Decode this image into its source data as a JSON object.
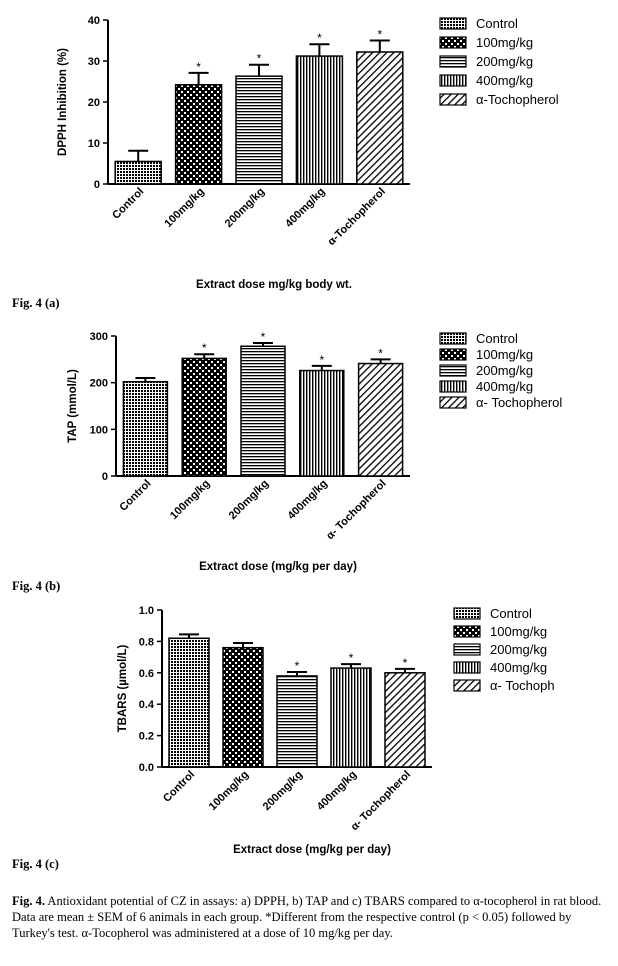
{
  "figures": [
    {
      "label": "Fig. 4 (a)",
      "chart_data": {
        "type": "bar",
        "categories": [
          "Control",
          "100mg/kg",
          "200mg/kg",
          "400mg/kg",
          "α-Tochopherol"
        ],
        "values": [
          5.5,
          24.2,
          26.3,
          31.2,
          32.2
        ],
        "errors": [
          2.6,
          2.9,
          2.8,
          2.9,
          2.8
        ],
        "significant": [
          false,
          true,
          true,
          true,
          true
        ],
        "significance_marker": "*",
        "xlabel": "Extract dose mg/kg body wt.",
        "ylabel": "DPPH Inhibition (%)",
        "ylim": [
          0,
          40
        ],
        "yticks": [
          "0",
          "10",
          "20",
          "30",
          "40"
        ],
        "legend": [
          "Control",
          "100mg/kg",
          "200mg/kg",
          "400mg/kg",
          "α-Tochopherol"
        ],
        "legend_position": "right"
      }
    },
    {
      "label": "Fig. 4 (b)",
      "chart_data": {
        "type": "bar",
        "categories": [
          "Control",
          "100mg/kg",
          "200mg/kg",
          "400mg/kg",
          "α- Tochopherol"
        ],
        "values": [
          202,
          252,
          278,
          226,
          241
        ],
        "errors": [
          8,
          9,
          7,
          10,
          9
        ],
        "significant": [
          false,
          true,
          true,
          true,
          true
        ],
        "significance_marker": "*",
        "xlabel": "Extract dose (mg/kg per day)",
        "ylabel": "TAP (mmol/L)",
        "ylim": [
          0,
          300
        ],
        "yticks": [
          "0",
          "100",
          "200",
          "300"
        ],
        "legend": [
          "Control",
          "100mg/kg",
          "200mg/kg",
          "400mg/kg",
          "α- Tochopherol"
        ],
        "legend_position": "right"
      }
    },
    {
      "label": "Fig. 4 (c)",
      "chart_data": {
        "type": "bar",
        "categories": [
          "Control",
          "100mg/kg",
          "200mg/kg",
          "400mg/kg",
          "α- Tochopherol"
        ],
        "values": [
          0.82,
          0.76,
          0.58,
          0.63,
          0.6
        ],
        "errors": [
          0.025,
          0.03,
          0.025,
          0.025,
          0.025
        ],
        "significant": [
          false,
          false,
          true,
          true,
          true
        ],
        "significance_marker": "*",
        "xlabel": "Extract dose (mg/kg per day)",
        "ylabel": "TBARS (µmol/L)",
        "ylim": [
          0,
          1.0
        ],
        "yticks": [
          "0.0",
          "0.2",
          "0.4",
          "0.6",
          "0.8",
          "1.0"
        ],
        "legend": [
          "Control",
          "100mg/kg",
          "200mg/kg",
          "400mg/kg",
          "α- Tochoph"
        ],
        "legend_position": "right"
      }
    }
  ],
  "caption": {
    "bold_prefix": "Fig. 4.",
    "text": " Antioxidant potential of CZ in assays: a) DPPH, b) TAP and c) TBARS compared to α-tocopherol in rat blood. Data are mean ± SEM of 6 animals in each group. *Different from the respective control (p < 0.05) followed by Turkey's test. α-Tocopherol was administered at a dose of 10 mg/kg per day."
  }
}
